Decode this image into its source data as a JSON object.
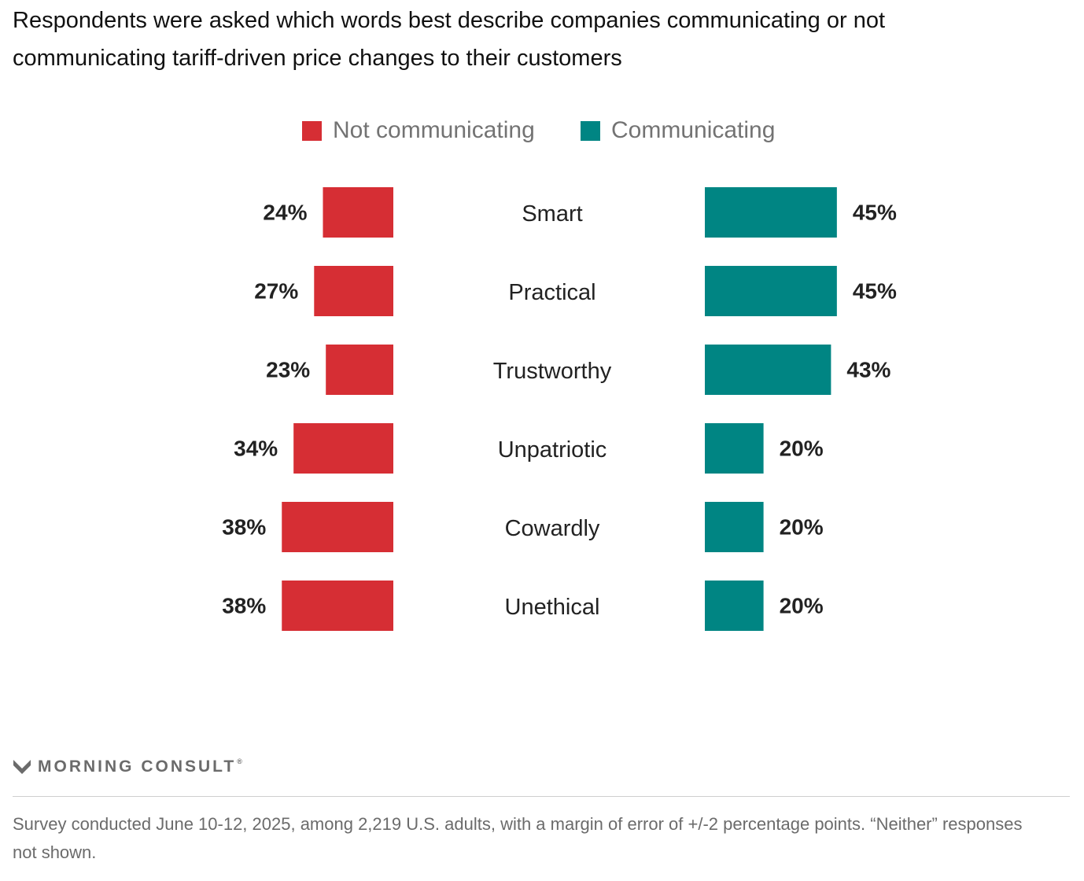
{
  "subtitle": "Respondents were asked which words best describe companies communicating or not communicating tariff-driven price changes to their customers",
  "footnote": "Survey conducted June 10-12, 2025, among 2,219 U.S. adults, with a margin of error of +/-2 percentage points. “Neither” responses not shown.",
  "brand": {
    "name": "MORNING CONSULT",
    "trademark": "®",
    "icon": "morning-consult-m-logo-icon"
  },
  "colors": {
    "not_communicating": "#d62e34",
    "communicating": "#008583",
    "text": "#222222",
    "muted": "#6b6b6b"
  },
  "chart_data": {
    "type": "bar",
    "orientation": "horizontal",
    "layout": "diverging (butterfly)",
    "title": "",
    "xlabel": "",
    "ylabel": "",
    "legend_position": "top-center",
    "grid": false,
    "value_suffix": "%",
    "categories": [
      "Smart",
      "Practical",
      "Trustworthy",
      "Unpatriotic",
      "Cowardly",
      "Unethical"
    ],
    "series": [
      {
        "name": "Not communicating",
        "color": "#d62e34",
        "values": [
          24,
          27,
          23,
          34,
          38,
          38
        ]
      },
      {
        "name": "Communicating",
        "color": "#008583",
        "values": [
          45,
          45,
          43,
          20,
          20,
          20
        ]
      }
    ]
  }
}
